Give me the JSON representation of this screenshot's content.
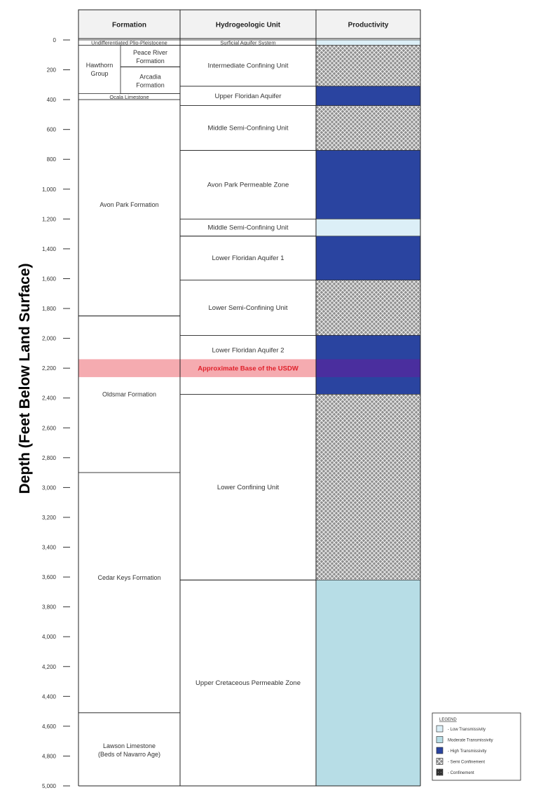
{
  "diagram": {
    "y_axis_title": "Depth (Feet Below Land Surface)",
    "depth_range_ft": [
      0,
      5000
    ],
    "depth_ticks": [
      "0",
      "200",
      "400",
      "600",
      "800",
      "1,000",
      "1,200",
      "1,400",
      "1,600",
      "1,800",
      "2,000",
      "2,200",
      "2,400",
      "2,600",
      "2,800",
      "3,000",
      "3,200",
      "3,400",
      "3,600",
      "3,800",
      "4,000",
      "4,200",
      "4,400",
      "4,600",
      "4,800",
      "5,000"
    ],
    "headers": {
      "formation": "Formation",
      "hydrogeologic_unit": "Hydrogeologic Unit",
      "productivity": "Productivity"
    },
    "formations": [
      {
        "name": "Undifferentiated Plio-Pleistocene",
        "top": 0,
        "bottom": 35
      },
      {
        "name": "Peace River Formation",
        "top": 35,
        "bottom": 180,
        "group": "hawthorn"
      },
      {
        "name": "Arcadia Formation",
        "top": 180,
        "bottom": 360,
        "group": "hawthorn"
      },
      {
        "name": "Ocala Limestone",
        "top": 360,
        "bottom": 400
      },
      {
        "name": "Avon Park Formation",
        "top": 400,
        "bottom": 1850
      },
      {
        "name": "Oldsmar Formation",
        "top": 1850,
        "bottom": 2900
      },
      {
        "name": "Cedar Keys Formation",
        "top": 2900,
        "bottom": 4510
      },
      {
        "name": "Lawson Limestone",
        "subname": "(Beds of Navarro Age)",
        "top": 4510,
        "bottom": 5000
      }
    ],
    "hawthorn_group": {
      "line1": "Hawthorn",
      "line2": "Group",
      "top": 35,
      "bottom": 360
    },
    "hydro_units": [
      {
        "name": "Surficial Aquifer System",
        "top": 0,
        "bottom": 35
      },
      {
        "name": "Intermediate Confining Unit",
        "top": 35,
        "bottom": 310
      },
      {
        "name": "Upper Floridan Aquifer",
        "top": 310,
        "bottom": 440
      },
      {
        "name": "Middle Semi-Confining Unit",
        "top": 440,
        "bottom": 740
      },
      {
        "name": "Avon Park Permeable Zone",
        "top": 740,
        "bottom": 1200
      },
      {
        "name": "Middle Semi-Confining Unit",
        "top": 1200,
        "bottom": 1315
      },
      {
        "name": "Lower Floridan Aquifer 1",
        "top": 1315,
        "bottom": 1610
      },
      {
        "name": "Lower Semi-Confining Unit",
        "top": 1610,
        "bottom": 1980
      },
      {
        "name": "Lower Floridan Aquifer 2",
        "top": 1980,
        "bottom": 2375
      },
      {
        "name": "Lower Confining Unit",
        "top": 2375,
        "bottom": 3620
      },
      {
        "name": "Upper Cretaceous Permeable Zone",
        "top": 3620,
        "bottom": 5000
      }
    ],
    "productivity": [
      {
        "class": "low",
        "top": 0,
        "bottom": 35
      },
      {
        "class": "semi",
        "top": 35,
        "bottom": 310
      },
      {
        "class": "high",
        "top": 310,
        "bottom": 440
      },
      {
        "class": "semi",
        "top": 440,
        "bottom": 740
      },
      {
        "class": "high",
        "top": 740,
        "bottom": 1200
      },
      {
        "class": "low",
        "top": 1200,
        "bottom": 1315
      },
      {
        "class": "high",
        "top": 1315,
        "bottom": 1610
      },
      {
        "class": "semi",
        "top": 1610,
        "bottom": 1980
      },
      {
        "class": "high",
        "top": 1980,
        "bottom": 2375
      },
      {
        "class": "semi",
        "top": 2375,
        "bottom": 3620
      },
      {
        "class": "moderate",
        "top": 3620,
        "bottom": 5000
      }
    ],
    "usdw_band": {
      "label": "Approximate Base of the USDW",
      "top": 2140,
      "bottom": 2260,
      "color": "#f4a6ac",
      "label_color": "#e0202a"
    },
    "colors": {
      "low": "#dceff7",
      "moderate": "#b7dde6",
      "high": "#2a44a0",
      "usdw_over_high": "#4a2e9e",
      "semi_bg": "#8d8d8d",
      "semi_fg": "#ececec",
      "confinement": "#333333",
      "header_bg": "#f2f2f2"
    },
    "legend": {
      "title": "LEGEND",
      "items": [
        {
          "class": "low",
          "label": "- Low Transmissivity"
        },
        {
          "class": "moderate",
          "label": "Moderate Transmissivity"
        },
        {
          "class": "high",
          "label": "- High Transmissivity"
        },
        {
          "class": "semi",
          "label": "- Semi Confinement"
        },
        {
          "class": "confinement",
          "label": "- Confinement"
        }
      ]
    }
  }
}
